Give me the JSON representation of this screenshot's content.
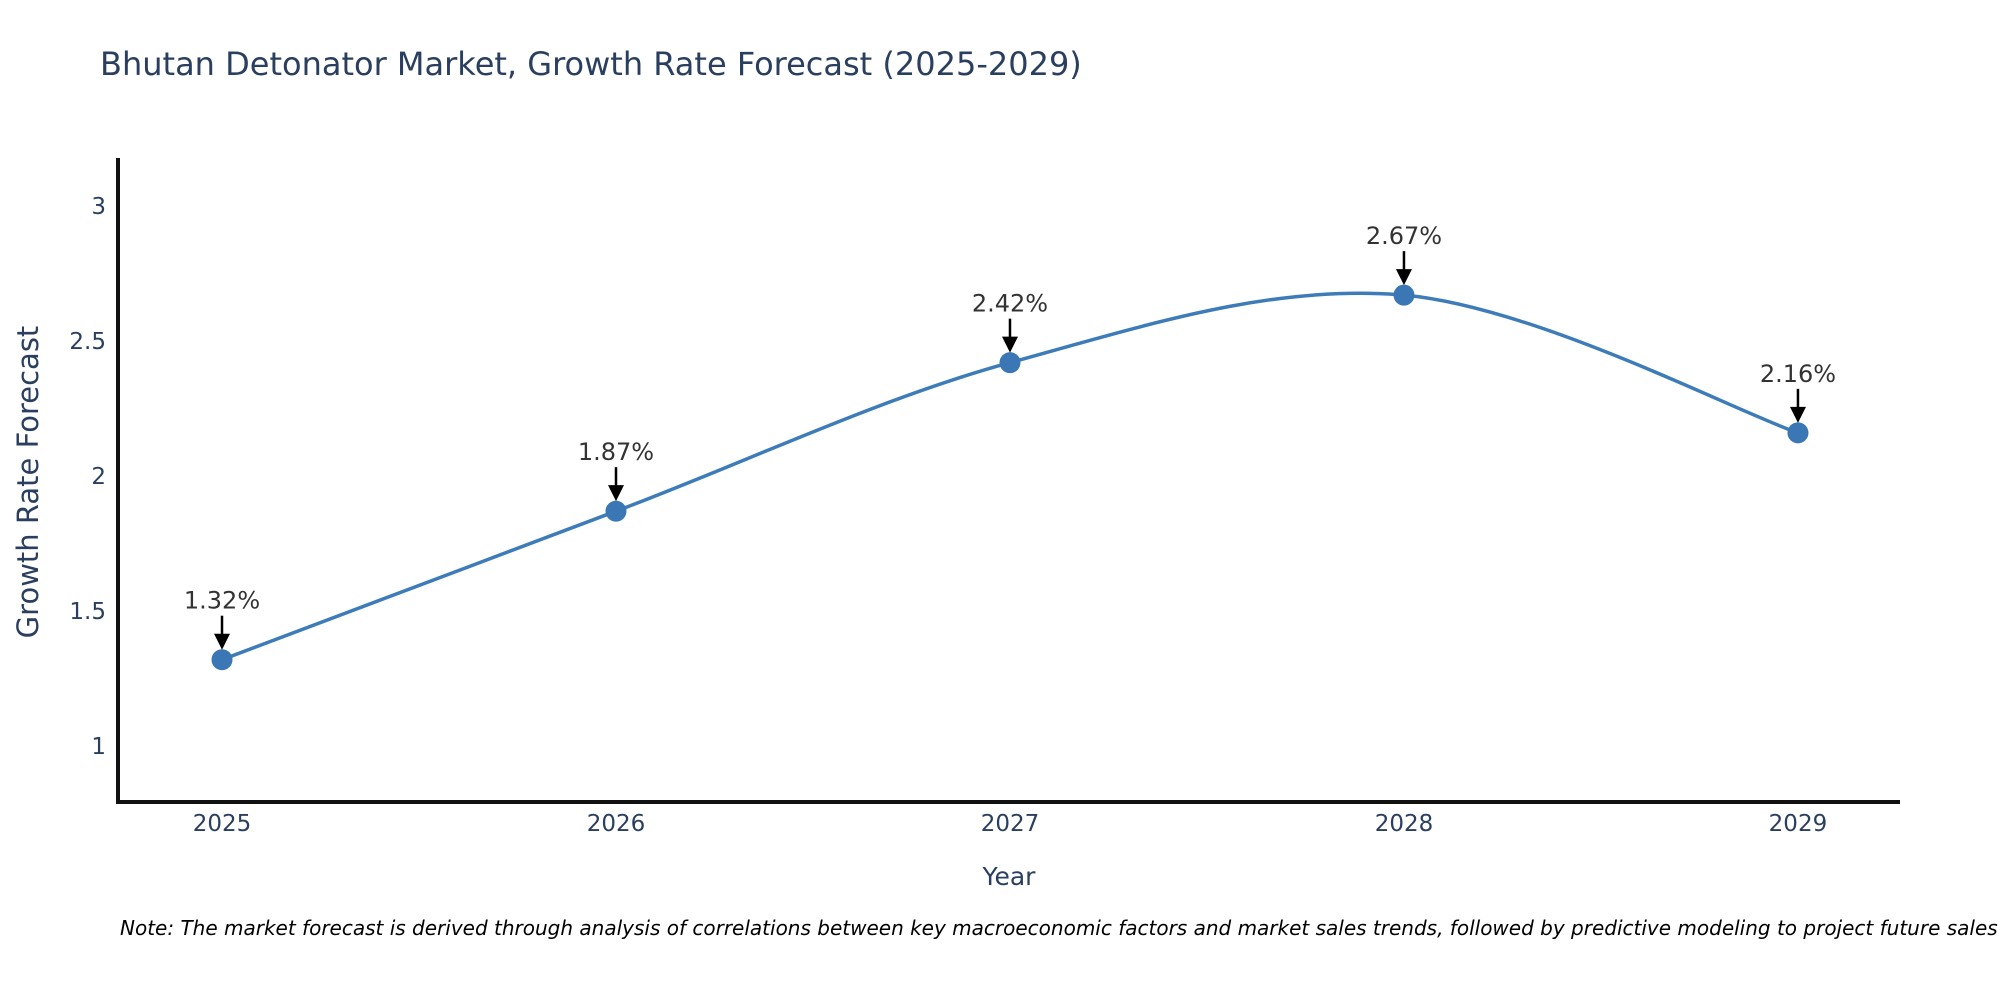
{
  "title": "Bhutan Detonator Market, Growth Rate Forecast (2025-2029)",
  "note": "Note: The market forecast is derived through analysis of correlations between key macroeconomic factors and market sales trends, followed by predictive modeling to project future sales",
  "chart_data": {
    "type": "line",
    "title": "Bhutan Detonator Market, Growth Rate Forecast (2025-2029)",
    "xlabel": "Year",
    "ylabel": "Growth Rate Forecast",
    "x": [
      2025,
      2026,
      2027,
      2028,
      2029
    ],
    "values": [
      1.32,
      1.87,
      2.42,
      2.67,
      2.16
    ],
    "labels": [
      "1.32%",
      "1.87%",
      "2.42%",
      "2.67%",
      "2.16%"
    ],
    "line_shape": "spline",
    "grid": false,
    "legend_position": "none",
    "xticks": [
      {
        "value": 2025,
        "label": "2025"
      },
      {
        "value": 2026,
        "label": "2026"
      },
      {
        "value": 2027,
        "label": "2027"
      },
      {
        "value": 2028,
        "label": "2028"
      },
      {
        "value": 2029,
        "label": "2029"
      }
    ],
    "yticks": [
      {
        "value": 1,
        "label": "1"
      },
      {
        "value": 1.5,
        "label": "1.5"
      },
      {
        "value": 2,
        "label": "2"
      },
      {
        "value": 2.5,
        "label": "2.5"
      },
      {
        "value": 3,
        "label": "3"
      }
    ],
    "ylim": [
      0.793,
      3.163
    ],
    "xlim_years": [
      2024.736,
      2029.259
    ],
    "line_color": "#3d7cb8",
    "marker_color": "#3a77b4",
    "axis_color": "#111111",
    "text_color": "#2a3f5f",
    "annotation_color": "#333333"
  }
}
